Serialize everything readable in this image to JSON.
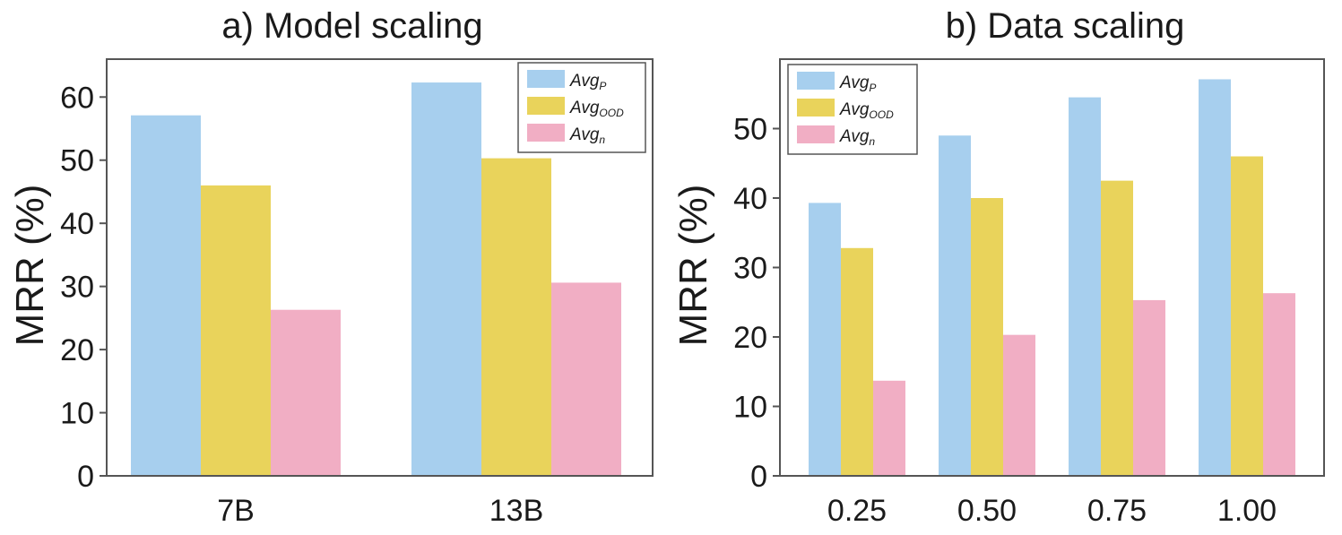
{
  "chart_data": [
    {
      "type": "bar",
      "title": "a) Model scaling",
      "ylabel": "MRR (%)",
      "xlabel": "",
      "categories": [
        "7B",
        "13B"
      ],
      "series": [
        {
          "name": "P",
          "values": [
            57.1,
            62.3
          ]
        },
        {
          "name": "OOD",
          "values": [
            46.0,
            50.3
          ]
        },
        {
          "name": "n",
          "values": [
            26.3,
            30.6
          ]
        }
      ],
      "ylim": [
        0,
        66
      ],
      "yticks": [
        "0",
        "10",
        "20",
        "30",
        "40",
        "50",
        "60"
      ],
      "legend_position": "top-right",
      "legend_base": "Avg",
      "grid": false
    },
    {
      "type": "bar",
      "title": "b) Data scaling",
      "ylabel": "MRR (%)",
      "xlabel": "",
      "categories": [
        "0.25",
        "0.50",
        "0.75",
        "1.00"
      ],
      "series": [
        {
          "name": "P",
          "values": [
            39.3,
            49.0,
            54.5,
            57.1
          ]
        },
        {
          "name": "OOD",
          "values": [
            32.8,
            40.0,
            42.5,
            46.0
          ]
        },
        {
          "name": "n",
          "values": [
            13.7,
            20.3,
            25.3,
            26.3
          ]
        }
      ],
      "ylim": [
        0,
        60
      ],
      "yticks": [
        "0",
        "10",
        "20",
        "30",
        "40",
        "50"
      ],
      "legend_position": "top-left",
      "legend_base": "Avg",
      "grid": false
    }
  ],
  "colors": {
    "series": [
      "#a7cfee",
      "#e9d35b",
      "#f1aec4"
    ],
    "axis": "#555555",
    "text": "#1a1a1a"
  }
}
